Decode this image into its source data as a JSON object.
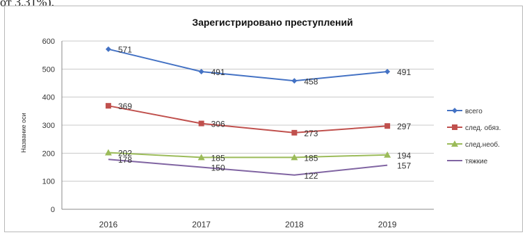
{
  "page": {
    "top_fragment": "от 3,31%)."
  },
  "chart_data": {
    "type": "line",
    "title": "Зарегистрировано преступлений",
    "xlabel": "",
    "ylabel": "Название оси",
    "categories": [
      "2016",
      "2017",
      "2018",
      "2019"
    ],
    "ylim": [
      0,
      600
    ],
    "yticks": [
      0,
      100,
      200,
      300,
      400,
      500,
      600
    ],
    "grid": true,
    "legend_position": "right",
    "series": [
      {
        "name": "всего",
        "values": [
          571,
          491,
          458,
          491
        ],
        "color": "#4472c4",
        "marker": "diamond"
      },
      {
        "name": "след. обяз.",
        "values": [
          369,
          306,
          273,
          297
        ],
        "color": "#c0504d",
        "marker": "square"
      },
      {
        "name": "след.необ.",
        "values": [
          202,
          185,
          185,
          194
        ],
        "color": "#9bbb59",
        "marker": "triangle"
      },
      {
        "name": "тяжкие",
        "values": [
          178,
          150,
          122,
          157
        ],
        "color": "#8064a2",
        "marker": "none"
      }
    ]
  }
}
